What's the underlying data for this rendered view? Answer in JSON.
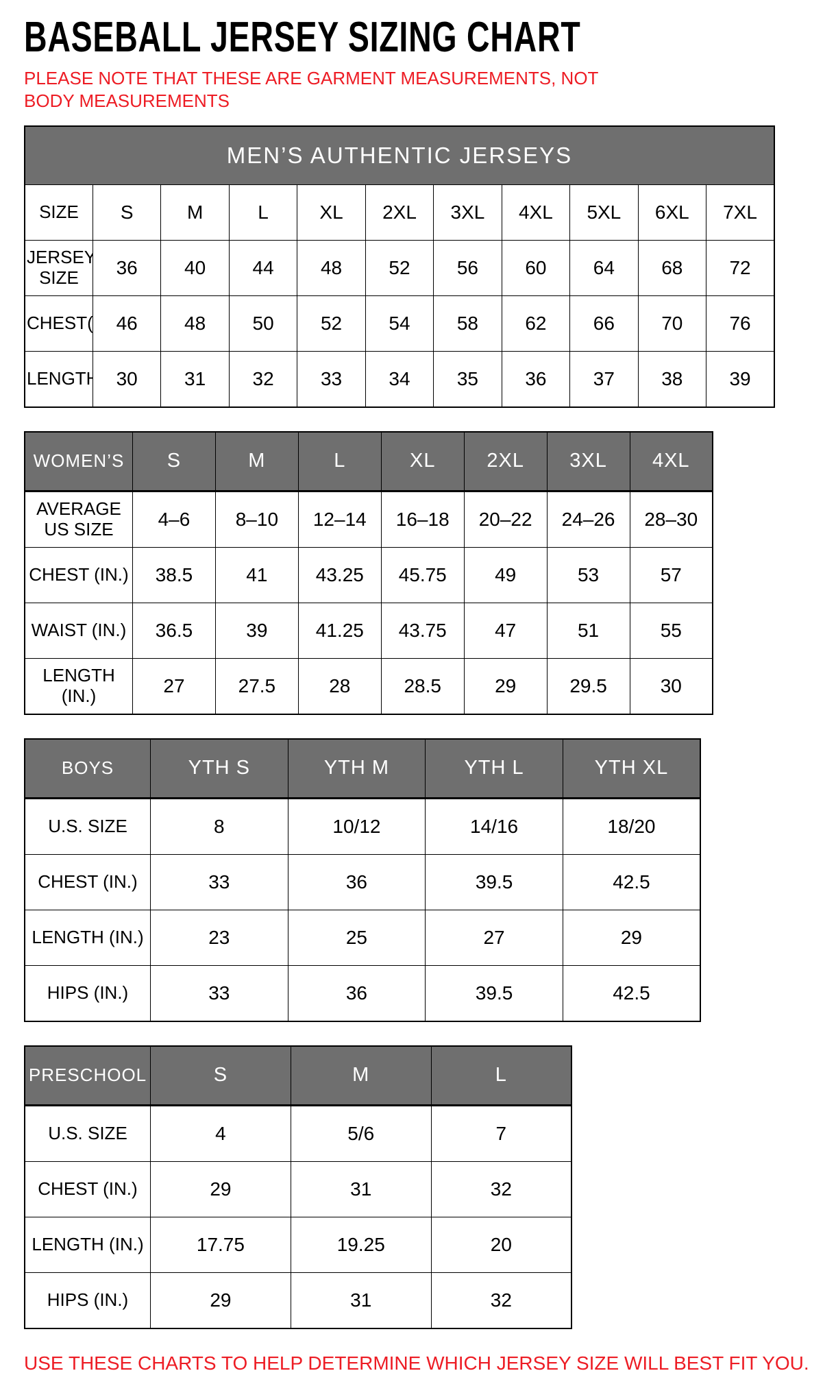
{
  "page": {
    "title": "BASEBALL JERSEY SIZING CHART",
    "note": "PLEASE NOTE THAT THESE ARE GARMENT MEASUREMENTS, NOT BODY MEASUREMENTS",
    "footer": "USE THESE CHARTS TO HELP DETERMINE WHICH JERSEY SIZE WILL BEST FIT YOU.",
    "colors": {
      "accent_red": "#ed1c24",
      "header_gray": "#6f6f6f",
      "header_text": "#ffffff",
      "border": "#000000"
    }
  },
  "chart_data": [
    {
      "type": "table",
      "name": "mens-authentic-jerseys",
      "banner": "MEN’S AUTHENTIC JERSEYS",
      "rows": [
        {
          "label": "SIZE",
          "values": [
            "S",
            "M",
            "L",
            "XL",
            "2XL",
            "3XL",
            "4XL",
            "5XL",
            "6XL",
            "7XL"
          ]
        },
        {
          "label": "JERSEY SIZE",
          "values": [
            "36",
            "40",
            "44",
            "48",
            "52",
            "56",
            "60",
            "64",
            "68",
            "72"
          ]
        },
        {
          "label": "CHEST(IN.)",
          "values": [
            "46",
            "48",
            "50",
            "52",
            "54",
            "58",
            "62",
            "66",
            "70",
            "76"
          ]
        },
        {
          "label": "LENGTH(IN.)",
          "values": [
            "30",
            "31",
            "32",
            "33",
            "34",
            "35",
            "36",
            "37",
            "38",
            "39"
          ]
        }
      ]
    },
    {
      "type": "table",
      "name": "womens",
      "header": {
        "label": "WOMEN’S",
        "columns": [
          "S",
          "M",
          "L",
          "XL",
          "2XL",
          "3XL",
          "4XL"
        ]
      },
      "rows": [
        {
          "label": "AVERAGE US SIZE",
          "values": [
            "4–6",
            "8–10",
            "12–14",
            "16–18",
            "20–22",
            "24–26",
            "28–30"
          ]
        },
        {
          "label": "CHEST (IN.)",
          "values": [
            "38.5",
            "41",
            "43.25",
            "45.75",
            "49",
            "53",
            "57"
          ]
        },
        {
          "label": "WAIST (IN.)",
          "values": [
            "36.5",
            "39",
            "41.25",
            "43.75",
            "47",
            "51",
            "55"
          ]
        },
        {
          "label": "LENGTH (IN.)",
          "values": [
            "27",
            "27.5",
            "28",
            "28.5",
            "29",
            "29.5",
            "30"
          ]
        }
      ]
    },
    {
      "type": "table",
      "name": "boys",
      "header": {
        "label": "BOYS",
        "columns": [
          "YTH S",
          "YTH M",
          "YTH L",
          "YTH XL"
        ]
      },
      "rows": [
        {
          "label": "U.S. SIZE",
          "values": [
            "8",
            "10/12",
            "14/16",
            "18/20"
          ]
        },
        {
          "label": "CHEST (IN.)",
          "values": [
            "33",
            "36",
            "39.5",
            "42.5"
          ]
        },
        {
          "label": "LENGTH (IN.)",
          "values": [
            "23",
            "25",
            "27",
            "29"
          ]
        },
        {
          "label": "HIPS (IN.)",
          "values": [
            "33",
            "36",
            "39.5",
            "42.5"
          ]
        }
      ]
    },
    {
      "type": "table",
      "name": "preschool",
      "header": {
        "label": "PRESCHOOL",
        "columns": [
          "S",
          "M",
          "L"
        ]
      },
      "rows": [
        {
          "label": "U.S. SIZE",
          "values": [
            "4",
            "5/6",
            "7"
          ]
        },
        {
          "label": "CHEST (IN.)",
          "values": [
            "29",
            "31",
            "32"
          ]
        },
        {
          "label": "LENGTH (IN.)",
          "values": [
            "17.75",
            "19.25",
            "20"
          ]
        },
        {
          "label": "HIPS (IN.)",
          "values": [
            "29",
            "31",
            "32"
          ]
        }
      ]
    }
  ]
}
